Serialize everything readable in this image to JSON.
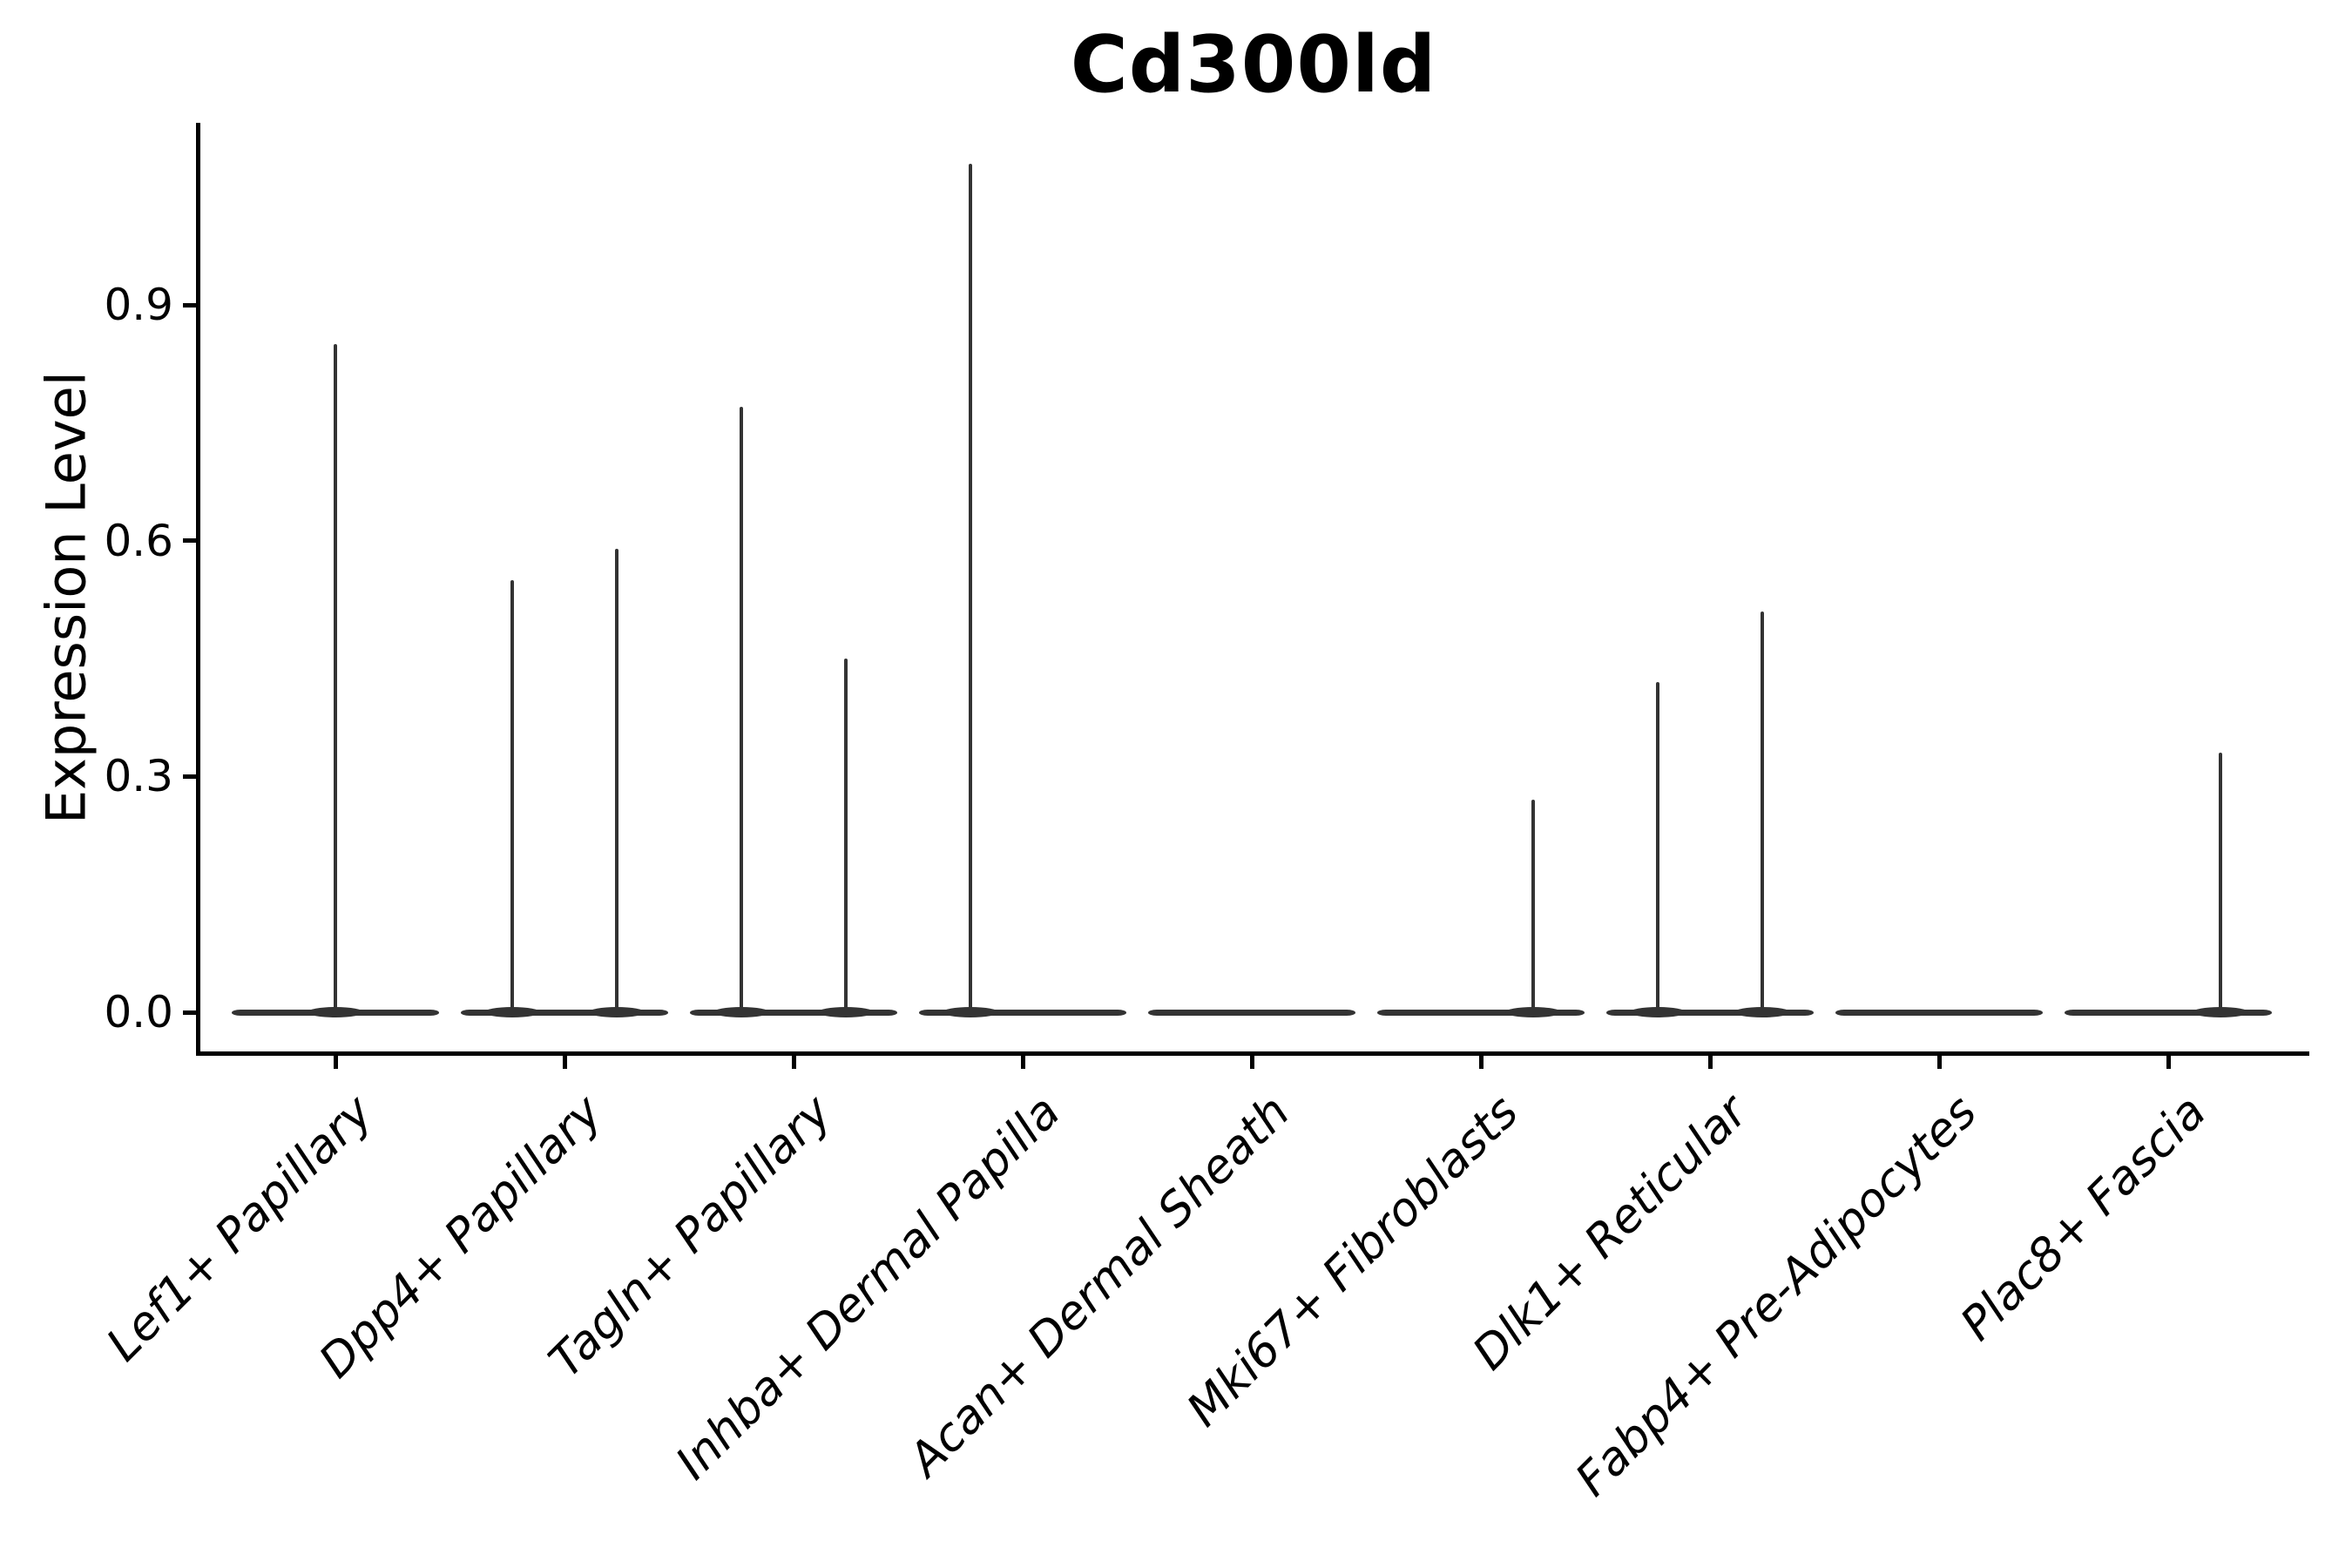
{
  "chart_data": {
    "type": "violin",
    "title": "Cd300ld",
    "ylabel": "Expression Level",
    "ytick_values": [
      0.0,
      0.3,
      0.6,
      0.9
    ],
    "ytick_labels": [
      "0.0",
      "0.3",
      "0.6",
      "0.9"
    ],
    "ylim": [
      -0.05,
      1.13
    ],
    "grid": false,
    "legend": "none",
    "violin_color": "#333333",
    "axis_color": "#000000",
    "categories": [
      "Lef1+ Papillary",
      "Dpp4+ Papillary",
      "Tagln+ Papillary",
      "Inhba+ Dermal Papilla",
      "Acan+ Dermal Sheath",
      "Mki67+ Fibroblasts",
      "Dlk1+ Reticular",
      "Fabp4+ Pre-Adipocytes",
      "Plac8+ Fascia"
    ],
    "violins": [
      {
        "category": "Lef1+ Papillary",
        "base_at_zero": true,
        "spikes": [
          {
            "offset_frac": 0,
            "peak": 0.85
          }
        ]
      },
      {
        "category": "Dpp4+ Papillary",
        "base_at_zero": true,
        "spikes": [
          {
            "offset_frac": -0.23,
            "peak": 0.55
          },
          {
            "offset_frac": 0.23,
            "peak": 0.59
          }
        ]
      },
      {
        "category": "Tagln+ Papillary",
        "base_at_zero": true,
        "spikes": [
          {
            "offset_frac": -0.23,
            "peak": 0.77
          },
          {
            "offset_frac": 0.23,
            "peak": 0.45
          }
        ]
      },
      {
        "category": "Inhba+ Dermal Papilla",
        "base_at_zero": true,
        "spikes": [
          {
            "offset_frac": -0.23,
            "peak": 1.08
          }
        ]
      },
      {
        "category": "Acan+ Dermal Sheath",
        "base_at_zero": true,
        "spikes": []
      },
      {
        "category": "Mki67+ Fibroblasts",
        "base_at_zero": true,
        "spikes": [
          {
            "offset_frac": 0.23,
            "peak": 0.27
          }
        ]
      },
      {
        "category": "Dlk1+ Reticular",
        "base_at_zero": true,
        "spikes": [
          {
            "offset_frac": -0.23,
            "peak": 0.42
          },
          {
            "offset_frac": 0.23,
            "peak": 0.51
          }
        ]
      },
      {
        "category": "Fabp4+ Pre-Adipocytes",
        "base_at_zero": true,
        "spikes": []
      },
      {
        "category": "Plac8+ Fascia",
        "base_at_zero": true,
        "spikes": [
          {
            "offset_frac": 0.23,
            "peak": 0.33
          }
        ]
      }
    ]
  }
}
